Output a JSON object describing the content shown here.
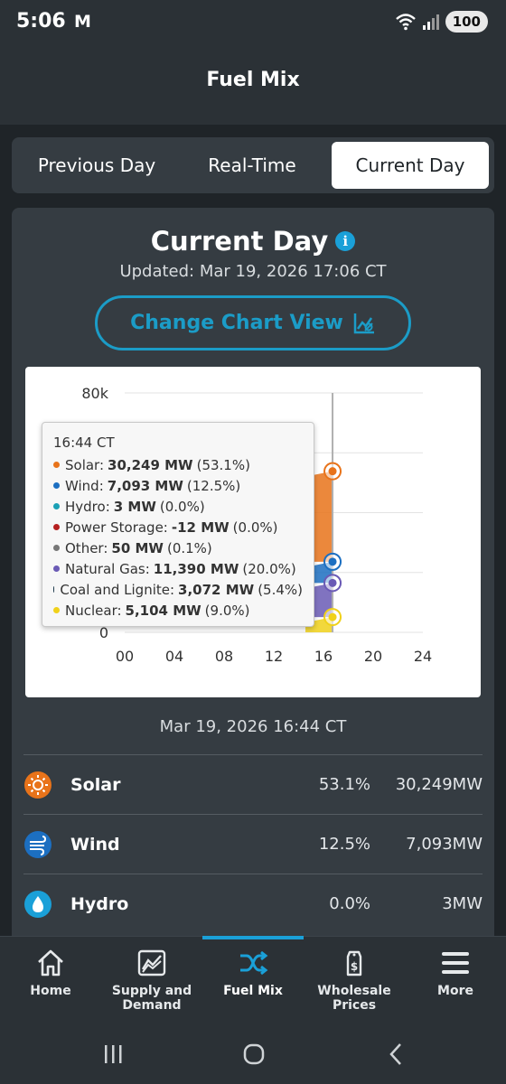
{
  "status_bar": {
    "time": "5:06",
    "mail_icon": "gmail-icon",
    "battery": "100"
  },
  "header": {
    "title": "Fuel Mix"
  },
  "tabs": [
    {
      "label": "Previous Day",
      "selected": false
    },
    {
      "label": "Real-Time",
      "selected": false
    },
    {
      "label": "Current Day",
      "selected": true
    }
  ],
  "card": {
    "title": "Current Day",
    "updated": "Updated: Mar 19, 2026 17:06 CT",
    "change_chart_view": "Change Chart View"
  },
  "chart_data": {
    "type": "area",
    "x_ticks": [
      "00",
      "04",
      "08",
      "12",
      "16",
      "20",
      "24"
    ],
    "y_ticks": [
      "0",
      "80k"
    ],
    "xlim": [
      0,
      24
    ],
    "ylim": [
      0,
      80000
    ],
    "cursor_hour": 16.73,
    "series": [
      {
        "name": "Solar",
        "color": "#e8731a",
        "value": 30249
      },
      {
        "name": "Wind",
        "color": "#1c6fc1",
        "value": 7093
      },
      {
        "name": "Natural Gas",
        "color": "#6a5ab5",
        "value": 11390
      },
      {
        "name": "Nuclear",
        "color": "#f0d11a",
        "value": 5104
      }
    ],
    "tooltip": {
      "time": "16:44 CT",
      "rows": [
        {
          "name": "Solar:",
          "value": "30,249 MW",
          "pct": "(53.1%)",
          "color": "#e8731a"
        },
        {
          "name": "Wind:",
          "value": "7,093 MW",
          "pct": "(12.5%)",
          "color": "#1c6fc1"
        },
        {
          "name": "Hydro:",
          "value": "3 MW",
          "pct": "(0.0%)",
          "color": "#1aa0b5"
        },
        {
          "name": "Power Storage:",
          "value": "-12 MW",
          "pct": "(0.0%)",
          "color": "#b52020"
        },
        {
          "name": "Other:",
          "value": "50 MW",
          "pct": "(0.1%)",
          "color": "#777777"
        },
        {
          "name": "Natural Gas:",
          "value": "11,390 MW",
          "pct": "(20.0%)",
          "color": "#6a5ab5"
        },
        {
          "name": "Coal and Lignite:",
          "value": "3,072 MW",
          "pct": "(5.4%)",
          "color": "#1f3b4d"
        },
        {
          "name": "Nuclear:",
          "value": "5,104 MW",
          "pct": "(9.0%)",
          "color": "#f0d11a"
        }
      ]
    }
  },
  "timestamp": "Mar 19, 2026 16:44 CT",
  "fuel_list": [
    {
      "name": "Solar",
      "pct": "53.1%",
      "mw": "30,249MW",
      "icon": "sun-icon",
      "color": "#e8731a"
    },
    {
      "name": "Wind",
      "pct": "12.5%",
      "mw": "7,093MW",
      "icon": "wind-icon",
      "color": "#1c6fc1"
    },
    {
      "name": "Hydro",
      "pct": "0.0%",
      "mw": "3MW",
      "icon": "water-drop-icon",
      "color": "#1aa0d8"
    }
  ],
  "bottom_nav": [
    {
      "label": "Home",
      "icon": "home-icon"
    },
    {
      "label": "Supply and Demand",
      "icon": "chart-icon"
    },
    {
      "label": "Fuel Mix",
      "icon": "shuffle-icon",
      "active": true
    },
    {
      "label": "Wholesale Prices",
      "icon": "price-tag-icon"
    },
    {
      "label": "More",
      "icon": "menu-icon"
    }
  ]
}
